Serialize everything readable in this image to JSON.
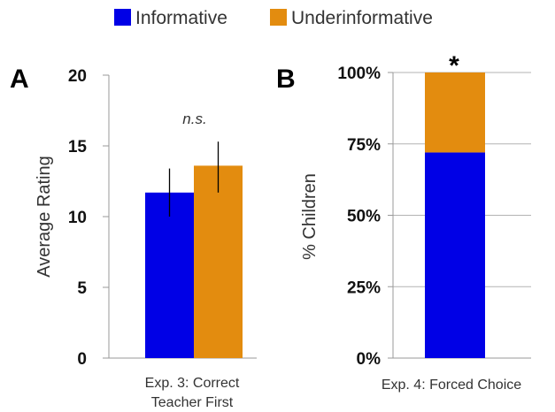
{
  "legend": [
    {
      "label": "Informative",
      "color": "#0000e6"
    },
    {
      "label": "Underinformative",
      "color": "#e38c0f"
    }
  ],
  "chart_data": [
    {
      "panel": "A",
      "type": "bar",
      "ylabel": "Average Rating",
      "ylim": [
        0,
        20
      ],
      "yticks": [
        "0",
        "5",
        "10",
        "15",
        "20"
      ],
      "category_label": [
        "Exp. 3: Correct",
        "Teacher First"
      ],
      "series": [
        {
          "name": "Informative",
          "value": 11.7,
          "err_low": 10.0,
          "err_high": 13.4
        },
        {
          "name": "Underinformative",
          "value": 13.6,
          "err_low": 11.7,
          "err_high": 15.3
        }
      ],
      "annotation": "n.s.",
      "grid": false
    },
    {
      "panel": "B",
      "type": "bar",
      "stacked": true,
      "ylabel": "% Children",
      "ylim": [
        0,
        100
      ],
      "yticks": [
        "0%",
        "25%",
        "50%",
        "75%",
        "100%"
      ],
      "category_label": [
        "Exp. 4: Forced Choice"
      ],
      "series": [
        {
          "name": "Informative",
          "value": 72
        },
        {
          "name": "Underinformative",
          "value": 28
        }
      ],
      "annotation": "*",
      "grid": true
    }
  ]
}
